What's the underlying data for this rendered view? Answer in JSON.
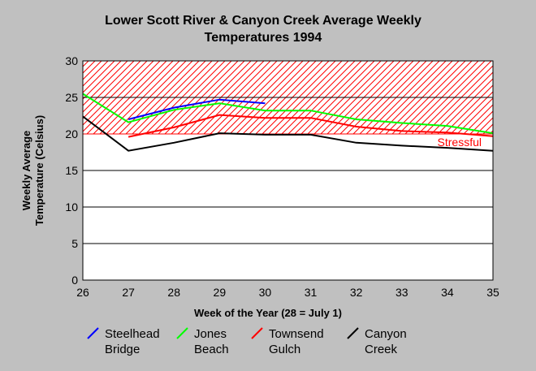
{
  "chart_data": {
    "type": "line",
    "title_line1": "Lower Scott River & Canyon Creek Average Weekly",
    "title_line2": "Temperatures 1994",
    "xlabel": "Week of the Year (28 = July 1)",
    "ylabel_line1": "Weekly Average",
    "ylabel_line2": "Temperature (Celsius)",
    "xlim": [
      26,
      35
    ],
    "ylim": [
      0,
      30
    ],
    "x_ticks": [
      26,
      27,
      28,
      29,
      30,
      31,
      32,
      33,
      34,
      35
    ],
    "y_ticks": [
      0,
      5,
      10,
      15,
      20,
      25,
      30
    ],
    "grid": true,
    "legend_placement": "bottom",
    "stress_zone": {
      "from": 20,
      "to": 30,
      "label": "Stressful",
      "color": "#ff0000"
    },
    "series": [
      {
        "name_line1": "Steelhead",
        "name_line2": "Bridge",
        "color": "#0000ff",
        "points": [
          [
            27,
            22.0
          ],
          [
            28,
            23.6
          ],
          [
            29,
            24.7
          ],
          [
            30,
            24.2
          ]
        ]
      },
      {
        "name_line1": "Jones",
        "name_line2": "Beach",
        "color": "#00ff00",
        "points": [
          [
            26,
            25.5
          ],
          [
            27,
            21.6
          ],
          [
            28,
            23.3
          ],
          [
            29,
            24.2
          ],
          [
            30,
            23.2
          ],
          [
            31,
            23.2
          ],
          [
            32,
            22.0
          ],
          [
            33,
            21.5
          ],
          [
            34,
            21.1
          ],
          [
            35,
            20.1
          ]
        ]
      },
      {
        "name_line1": "Townsend",
        "name_line2": "Gulch",
        "color": "#ff0000",
        "points": [
          [
            27,
            19.6
          ],
          [
            28,
            20.9
          ],
          [
            29,
            22.6
          ],
          [
            30,
            22.2
          ],
          [
            31,
            22.2
          ],
          [
            32,
            21.0
          ],
          [
            33,
            20.4
          ],
          [
            34,
            20.2
          ],
          [
            35,
            19.7
          ]
        ]
      },
      {
        "name_line1": "Canyon",
        "name_line2": "Creek",
        "color": "#000000",
        "points": [
          [
            26,
            22.4
          ],
          [
            27,
            17.7
          ],
          [
            28,
            18.8
          ],
          [
            29,
            20.1
          ],
          [
            30,
            19.9
          ],
          [
            31,
            19.9
          ],
          [
            32,
            18.8
          ],
          [
            33,
            18.4
          ],
          [
            34,
            18.1
          ],
          [
            35,
            17.7
          ]
        ]
      }
    ]
  }
}
